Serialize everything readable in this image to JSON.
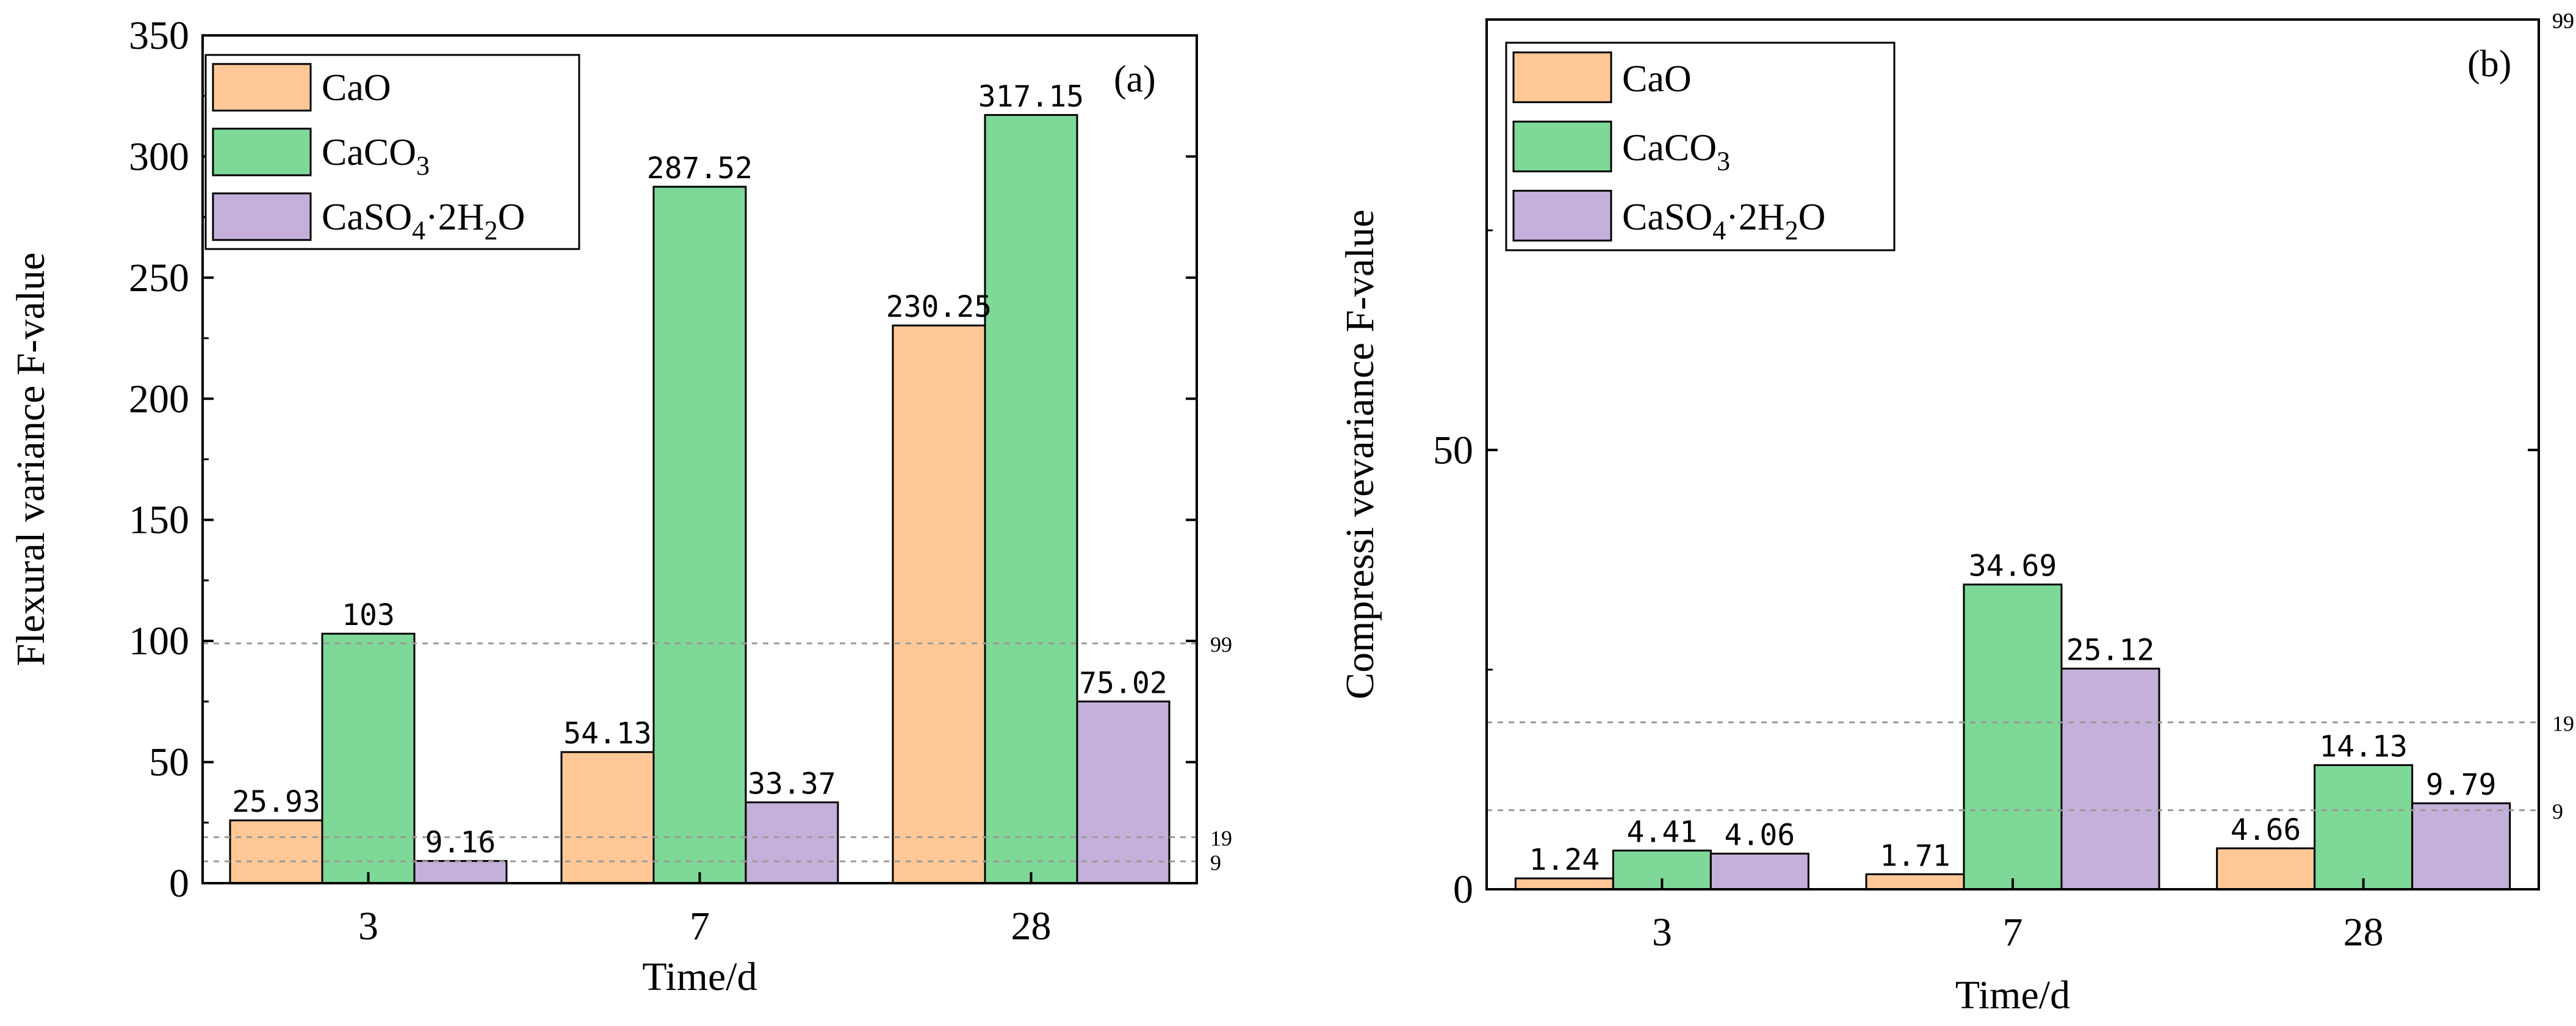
{
  "chart_data": [
    {
      "type": "bar",
      "panel_label": "(a)",
      "categories": [
        "3",
        "7",
        "28"
      ],
      "series": [
        {
          "name": "CaO",
          "formula": {
            "base": "CaO"
          },
          "color": "#FFC896",
          "values": [
            25.93,
            54.13,
            230.25
          ],
          "labels": [
            "25.93",
            "54.13",
            "230.25"
          ]
        },
        {
          "name": "CaCO3",
          "formula": {
            "base": "CaCO",
            "sub": "3"
          },
          "color": "#7ED897",
          "values": [
            103,
            287.52,
            317.15
          ],
          "labels": [
            "103",
            "287.52",
            "317.15"
          ]
        },
        {
          "name": "CaSO4·2H2O",
          "formula": {
            "a": "CaSO",
            "s1": "4",
            "b": "·2H",
            "s2": "2",
            "c": "O"
          },
          "color": "#C4B0DA",
          "values": [
            9.16,
            33.37,
            75.02
          ],
          "labels": [
            "9.16",
            "33.37",
            "75.02"
          ]
        }
      ],
      "xlabel": "Time/d",
      "ylabel": "Flexural variance F-value",
      "ylim": [
        0,
        350
      ],
      "yticks": [
        "0",
        "50",
        "100",
        "150",
        "200",
        "250",
        "300",
        "350"
      ],
      "reference_lines": [
        {
          "value": 99,
          "label": "99"
        },
        {
          "value": 19,
          "label": "19"
        },
        {
          "value": 9,
          "label": "9"
        }
      ],
      "legend_position": "top-left",
      "grid": false
    },
    {
      "type": "bar",
      "panel_label": "(b)",
      "categories": [
        "3",
        "7",
        "28"
      ],
      "series": [
        {
          "name": "CaO",
          "formula": {
            "base": "CaO"
          },
          "color": "#FFC896",
          "values": [
            1.24,
            1.71,
            4.66
          ],
          "labels": [
            "1.24",
            "1.71",
            "4.66"
          ]
        },
        {
          "name": "CaCO3",
          "formula": {
            "base": "CaCO",
            "sub": "3"
          },
          "color": "#7ED897",
          "values": [
            4.41,
            34.69,
            14.13
          ],
          "labels": [
            "4.41",
            "34.69",
            "14.13"
          ]
        },
        {
          "name": "CaSO4·2H2O",
          "formula": {
            "a": "CaSO",
            "s1": "4",
            "b": "·2H",
            "s2": "2",
            "c": "O"
          },
          "color": "#C4B0DA",
          "values": [
            4.06,
            25.12,
            9.79
          ],
          "labels": [
            "4.06",
            "25.12",
            "9.79"
          ]
        }
      ],
      "xlabel": "Time/d",
      "ylabel": "Compressi vevariance F-value",
      "ylim": [
        0,
        99
      ],
      "yticks": [
        "0",
        "50"
      ],
      "reference_lines": [
        {
          "value": 99,
          "label": "99"
        },
        {
          "value": 19,
          "label": "19"
        },
        {
          "value": 9,
          "label": "9"
        }
      ],
      "legend_position": "top-left",
      "grid": false
    }
  ]
}
